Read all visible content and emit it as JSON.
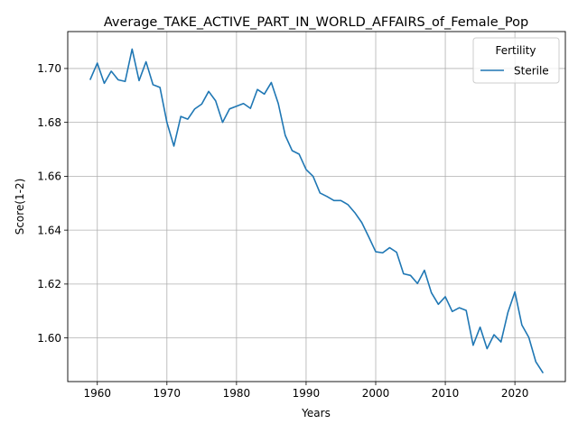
{
  "chart_data": {
    "type": "line",
    "title": "Average_TAKE_ACTIVE_PART_IN_WORLD_AFFAIRS_of_Female_Pop",
    "xlabel": "Years",
    "ylabel": "Score(1-2)",
    "xlim": [
      1955.75,
      2027.25
    ],
    "ylim": [
      1.5838,
      1.7137
    ],
    "x_ticks": [
      1960,
      1970,
      1980,
      1990,
      2000,
      2010,
      2020
    ],
    "x_tick_labels": [
      "1960",
      "1970",
      "1980",
      "1990",
      "2000",
      "2010",
      "2020"
    ],
    "y_ticks": [
      1.6,
      1.62,
      1.64,
      1.66,
      1.68,
      1.7
    ],
    "y_tick_labels": [
      "1.60",
      "1.62",
      "1.64",
      "1.66",
      "1.68",
      "1.70"
    ],
    "grid": true,
    "legend": {
      "title": "Fertility",
      "placement": "top-right"
    },
    "series": [
      {
        "name": "Sterile",
        "color": "#1f77b4",
        "x": [
          1959,
          1960,
          1961,
          1962,
          1963,
          1964,
          1965,
          1966,
          1967,
          1968,
          1969,
          1970,
          1971,
          1972,
          1973,
          1974,
          1975,
          1976,
          1977,
          1978,
          1979,
          1980,
          1981,
          1982,
          1983,
          1984,
          1985,
          1986,
          1987,
          1988,
          1989,
          1990,
          1991,
          1992,
          1993,
          1994,
          1995,
          1996,
          1997,
          1998,
          1999,
          2000,
          2001,
          2002,
          2003,
          2004,
          2005,
          2006,
          2007,
          2008,
          2009,
          2010,
          2011,
          2012,
          2013,
          2014,
          2015,
          2016,
          2017,
          2018,
          2019,
          2020,
          2021,
          2022,
          2023,
          2024
        ],
        "y": [
          1.696,
          1.702,
          1.6945,
          1.699,
          1.6958,
          1.6952,
          1.7072,
          1.6955,
          1.7025,
          1.694,
          1.693,
          1.68,
          1.6712,
          1.6822,
          1.6812,
          1.685,
          1.6868,
          1.6915,
          1.688,
          1.68,
          1.685,
          1.686,
          1.687,
          1.6852,
          1.6922,
          1.6905,
          1.6948,
          1.687,
          1.6752,
          1.6695,
          1.6682,
          1.6625,
          1.66,
          1.6538,
          1.6525,
          1.651,
          1.651,
          1.6495,
          1.6465,
          1.6428,
          1.6375,
          1.632,
          1.6316,
          1.6335,
          1.6318,
          1.6238,
          1.6232,
          1.6202,
          1.6251,
          1.6168,
          1.6125,
          1.6153,
          1.6098,
          1.6112,
          1.6102,
          1.5973,
          1.604,
          1.596,
          1.6012,
          1.5985,
          1.6095,
          1.6171,
          1.6048,
          1.6002,
          1.5912,
          1.5872
        ]
      }
    ]
  }
}
